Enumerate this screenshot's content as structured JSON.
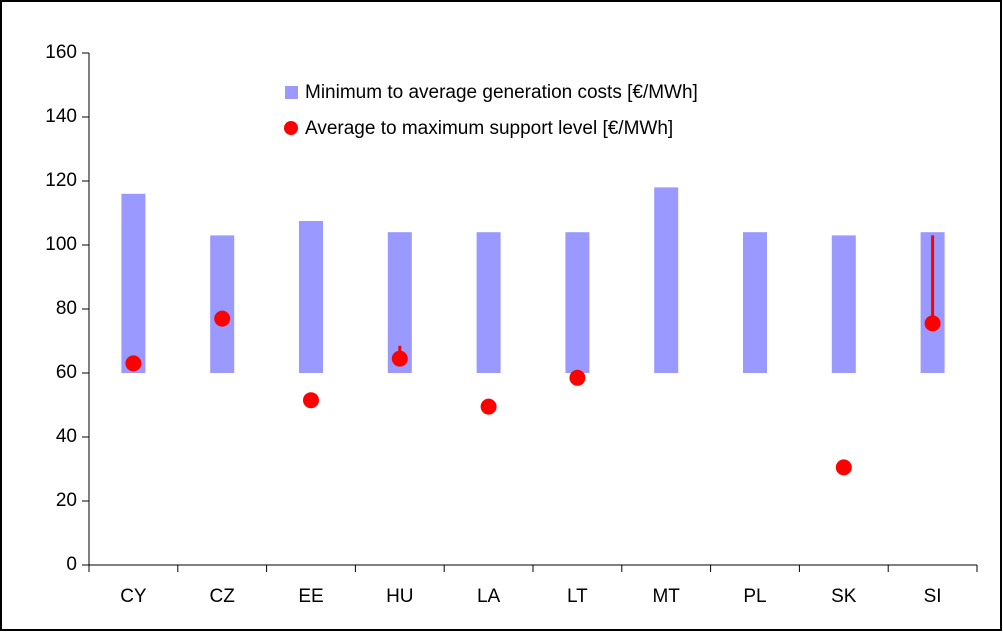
{
  "chart_data": {
    "type": "range-bar-dot",
    "categories": [
      "CY",
      "CZ",
      "EE",
      "HU",
      "LA",
      "LT",
      "MT",
      "PL",
      "SK",
      "SI"
    ],
    "series": [
      {
        "name": "Minimum to average generation costs [€/MWh]",
        "color": "#9999ff",
        "low": [
          60,
          60,
          60,
          60,
          60,
          60,
          60,
          60,
          60,
          60
        ],
        "values": [
          116,
          103,
          107.5,
          104,
          104,
          104,
          118,
          104,
          103,
          104
        ]
      },
      {
        "name": "Average to maximum support level [€/MWh]",
        "color": "#ff0000",
        "values": [
          63,
          77,
          51.5,
          64.5,
          49.5,
          58.5,
          null,
          null,
          30.5,
          75.5
        ],
        "max": [
          null,
          null,
          null,
          68.5,
          null,
          null,
          null,
          null,
          null,
          103
        ]
      }
    ],
    "ylim": [
      0,
      160
    ],
    "yticks": [
      0,
      20,
      40,
      60,
      80,
      100,
      120,
      140,
      160
    ],
    "legend": "top"
  }
}
